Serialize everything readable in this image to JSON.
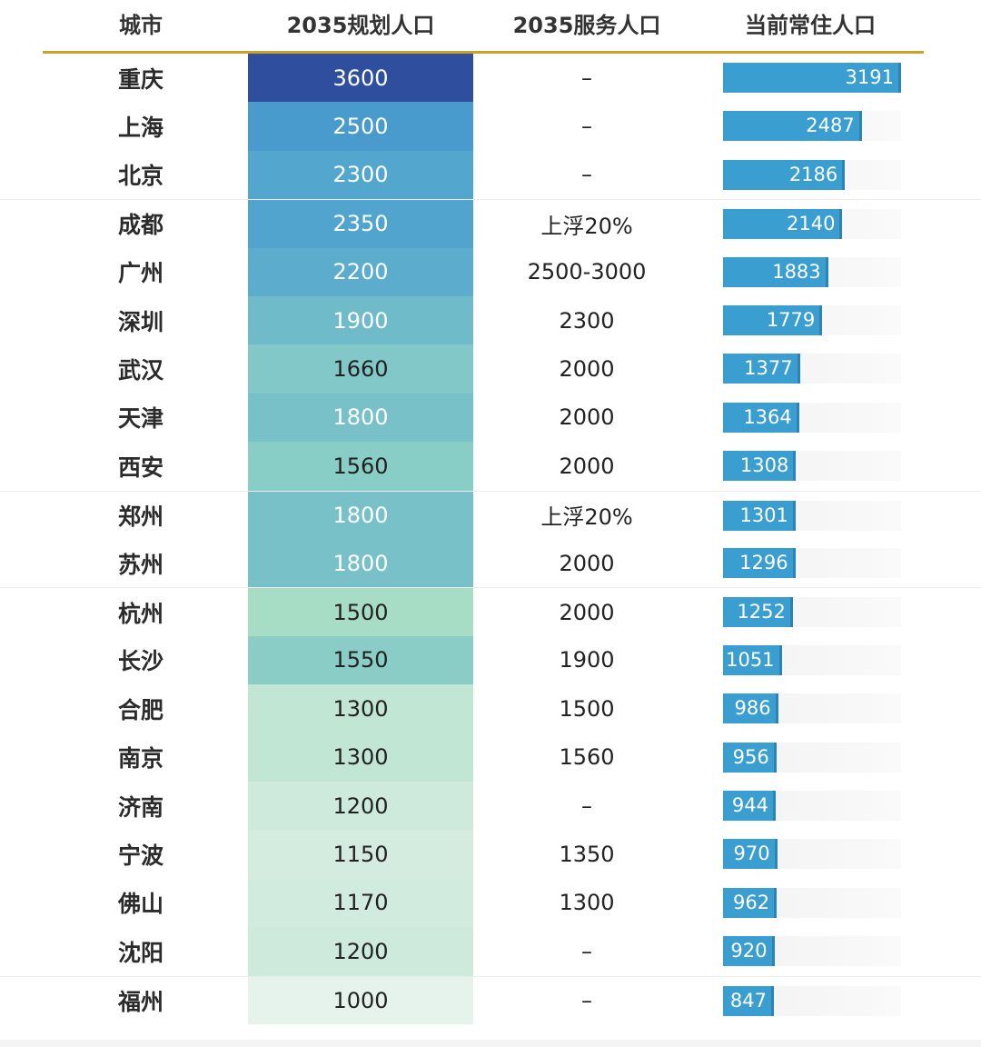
{
  "chart_data": {
    "type": "table",
    "columns": [
      "城市",
      "2035规划人口",
      "2035服务人口",
      "当前常住人口"
    ],
    "colors": {
      "header_rule": "#c9a227",
      "plan_high": "#2f4f9e",
      "plan_mid": "#4aa0cf",
      "plan_low": "#e6f3ec",
      "bar": "#3a9fd0"
    },
    "rows": [
      {
        "city": "重庆",
        "plan": "3600",
        "service": "–",
        "current": "3191",
        "current_value": 3191,
        "plan_value": 3600
      },
      {
        "city": "上海",
        "plan": "2500",
        "service": "–",
        "current": "2487",
        "current_value": 2487,
        "plan_value": 2500
      },
      {
        "city": "北京",
        "plan": "2300",
        "service": "–",
        "current": "2186",
        "current_value": 2186,
        "plan_value": 2300
      },
      {
        "city": "成都",
        "plan": "2350",
        "service": "上浮20%",
        "current": "2140",
        "current_value": 2140,
        "plan_value": 2350
      },
      {
        "city": "广州",
        "plan": "2200",
        "service": "2500-3000",
        "current": "1883",
        "current_value": 1883,
        "plan_value": 2200
      },
      {
        "city": "深圳",
        "plan": "1900",
        "service": "2300",
        "current": "1779",
        "current_value": 1779,
        "plan_value": 1900
      },
      {
        "city": "武汉",
        "plan": "1660",
        "service": "2000",
        "current": "1377",
        "current_value": 1377,
        "plan_value": 1660
      },
      {
        "city": "天津",
        "plan": "1800",
        "service": "2000",
        "current": "1364",
        "current_value": 1364,
        "plan_value": 1800
      },
      {
        "city": "西安",
        "plan": "1560",
        "service": "2000",
        "current": "1308",
        "current_value": 1308,
        "plan_value": 1560
      },
      {
        "city": "郑州",
        "plan": "1800",
        "service": "上浮20%",
        "current": "1301",
        "current_value": 1301,
        "plan_value": 1800
      },
      {
        "city": "苏州",
        "plan": "1800",
        "service": "2000",
        "current": "1296",
        "current_value": 1296,
        "plan_value": 1800
      },
      {
        "city": "杭州",
        "plan": "1500",
        "service": "2000",
        "current": "1252",
        "current_value": 1252,
        "plan_value": 1500
      },
      {
        "city": "长沙",
        "plan": "1550",
        "service": "1900",
        "current": "1051",
        "current_value": 1051,
        "plan_value": 1550
      },
      {
        "city": "合肥",
        "plan": "1300",
        "service": "1500",
        "current": "986",
        "current_value": 986,
        "plan_value": 1300
      },
      {
        "city": "南京",
        "plan": "1300",
        "service": "1560",
        "current": "956",
        "current_value": 956,
        "plan_value": 1300
      },
      {
        "city": "济南",
        "plan": "1200",
        "service": "–",
        "current": "944",
        "current_value": 944,
        "plan_value": 1200
      },
      {
        "city": "宁波",
        "plan": "1150",
        "service": "1350",
        "current": "970",
        "current_value": 970,
        "plan_value": 1150
      },
      {
        "city": "佛山",
        "plan": "1170",
        "service": "1300",
        "current": "962",
        "current_value": 962,
        "plan_value": 1170
      },
      {
        "city": "沈阳",
        "plan": "1200",
        "service": "–",
        "current": "920",
        "current_value": 920,
        "plan_value": 1200
      },
      {
        "city": "福州",
        "plan": "1000",
        "service": "–",
        "current": "847",
        "current_value": 847,
        "plan_value": 1000
      }
    ]
  }
}
